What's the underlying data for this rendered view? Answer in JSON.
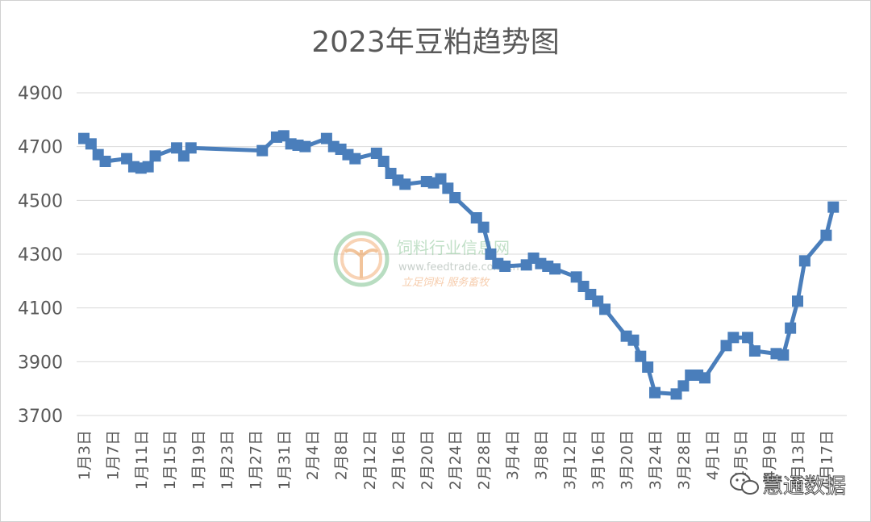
{
  "chart_data": {
    "type": "line",
    "title": "2023年豆粕趋势图",
    "xlabel": "",
    "ylabel": "",
    "ylim": [
      3700,
      4900
    ],
    "yticks": [
      3700,
      3900,
      4100,
      4300,
      4500,
      4700,
      4900
    ],
    "grid": "horizontal",
    "legend": "none",
    "series_color": "#4a7ebb",
    "x_tick_labels": [
      "1月3日",
      "1月7日",
      "1月11日",
      "1月15日",
      "1月19日",
      "1月23日",
      "1月27日",
      "1月31日",
      "2月4日",
      "2月8日",
      "2月12日",
      "2月16日",
      "2月20日",
      "2月24日",
      "2月28日",
      "3月4日",
      "3月8日",
      "3月12日",
      "3月16日",
      "3月20日",
      "3月24日",
      "3月28日",
      "4月1日",
      "4月5日",
      "4月9日",
      "4月13日",
      "4月17日"
    ],
    "points": [
      [
        "1月3日",
        4730
      ],
      [
        "1月4日",
        4710
      ],
      [
        "1月5日",
        4670
      ],
      [
        "1月6日",
        4645
      ],
      [
        "1月9日",
        4655
      ],
      [
        "1月10日",
        4625
      ],
      [
        "1月11日",
        4620
      ],
      [
        "1月12日",
        4625
      ],
      [
        "1月13日",
        4665
      ],
      [
        "1月16日",
        4695
      ],
      [
        "1月17日",
        4665
      ],
      [
        "1月18日",
        4695
      ],
      [
        "1月28日",
        4685
      ],
      [
        "1月30日",
        4735
      ],
      [
        "1月31日",
        4740
      ],
      [
        "2月1日",
        4710
      ],
      [
        "2月2日",
        4705
      ],
      [
        "2月3日",
        4700
      ],
      [
        "2月6日",
        4730
      ],
      [
        "2月7日",
        4700
      ],
      [
        "2月8日",
        4690
      ],
      [
        "2月9日",
        4670
      ],
      [
        "2月10日",
        4655
      ],
      [
        "2月13日",
        4675
      ],
      [
        "2月14日",
        4645
      ],
      [
        "2月15日",
        4600
      ],
      [
        "2月16日",
        4575
      ],
      [
        "2月17日",
        4560
      ],
      [
        "2月20日",
        4570
      ],
      [
        "2月21日",
        4565
      ],
      [
        "2月22日",
        4580
      ],
      [
        "2月23日",
        4545
      ],
      [
        "2月24日",
        4510
      ],
      [
        "2月27日",
        4435
      ],
      [
        "2月28日",
        4400
      ],
      [
        "3月1日",
        4300
      ],
      [
        "3月2日",
        4265
      ],
      [
        "3月3日",
        4255
      ],
      [
        "3月6日",
        4260
      ],
      [
        "3月7日",
        4285
      ],
      [
        "3月8日",
        4265
      ],
      [
        "3月9日",
        4255
      ],
      [
        "3月10日",
        4245
      ],
      [
        "3月13日",
        4215
      ],
      [
        "3月14日",
        4180
      ],
      [
        "3月15日",
        4150
      ],
      [
        "3月16日",
        4125
      ],
      [
        "3月17日",
        4095
      ],
      [
        "3月20日",
        3995
      ],
      [
        "3月21日",
        3980
      ],
      [
        "3月22日",
        3920
      ],
      [
        "3月23日",
        3880
      ],
      [
        "3月24日",
        3785
      ],
      [
        "3月27日",
        3780
      ],
      [
        "3月28日",
        3810
      ],
      [
        "3月29日",
        3850
      ],
      [
        "3月30日",
        3850
      ],
      [
        "3月31日",
        3840
      ],
      [
        "4月3日",
        3960
      ],
      [
        "4月4日",
        3990
      ],
      [
        "4月6日",
        3990
      ],
      [
        "4月7日",
        3940
      ],
      [
        "4月10日",
        3930
      ],
      [
        "4月11日",
        3925
      ],
      [
        "4月12日",
        4025
      ],
      [
        "4月13日",
        4125
      ],
      [
        "4月14日",
        4275
      ],
      [
        "4月17日",
        4370
      ],
      [
        "4月18日",
        4475
      ]
    ]
  },
  "watermark": {
    "name": "饲料行业信息网",
    "url": "www.feedtrade.com.cn",
    "slogan": "立足饲料    服务畜牧"
  },
  "badge": {
    "text": "慧通数据",
    "icon": "wechat-icon"
  }
}
